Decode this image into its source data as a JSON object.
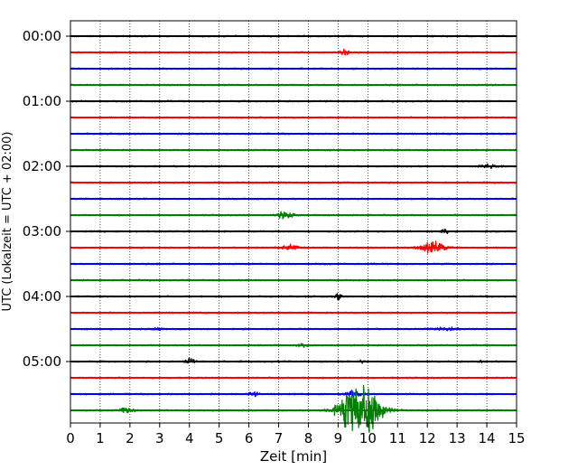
{
  "chart_data": {
    "type": "line",
    "title": "",
    "xlabel": "Zeit  [min]",
    "ylabel": "UTC (Lokalzeit = UTC + 02:00)",
    "xlim": [
      0,
      15
    ],
    "x_ticks": [
      0,
      1,
      2,
      3,
      4,
      5,
      6,
      7,
      8,
      9,
      10,
      11,
      12,
      13,
      14,
      15
    ],
    "y_tick_labels": [
      "00:00",
      "01:00",
      "02:00",
      "03:00",
      "04:00",
      "05:00"
    ],
    "row_start_times": [
      "00:00",
      "00:15",
      "00:30",
      "00:45",
      "01:00",
      "01:15",
      "01:30",
      "01:45",
      "02:00",
      "02:15",
      "02:30",
      "02:45",
      "03:00",
      "03:15",
      "03:30",
      "03:45",
      "04:00",
      "04:15",
      "04:30",
      "04:45",
      "05:00",
      "05:15",
      "05:30",
      "05:45"
    ],
    "row_colors": [
      "#000000",
      "#ff0000",
      "#0000ff",
      "#008000"
    ],
    "grid_x": "dotted",
    "noise_level": 0.12,
    "events": [
      {
        "row": 1,
        "t": 9.2,
        "amp": 0.5,
        "dur": 0.2
      },
      {
        "row": 8,
        "t": 14.0,
        "amp": 0.25,
        "dur": 0.4
      },
      {
        "row": 11,
        "t": 7.2,
        "amp": 0.5,
        "dur": 0.4
      },
      {
        "row": 12,
        "t": 12.6,
        "amp": 0.4,
        "dur": 0.15
      },
      {
        "row": 13,
        "t": 7.4,
        "amp": 0.4,
        "dur": 0.4
      },
      {
        "row": 13,
        "t": 12.2,
        "amp": 0.9,
        "dur": 0.6
      },
      {
        "row": 16,
        "t": 9.0,
        "amp": 0.5,
        "dur": 0.15
      },
      {
        "row": 18,
        "t": 2.95,
        "amp": 0.3,
        "dur": 0.15
      },
      {
        "row": 18,
        "t": 12.6,
        "amp": 0.25,
        "dur": 0.6
      },
      {
        "row": 19,
        "t": 7.8,
        "amp": 0.4,
        "dur": 0.2
      },
      {
        "row": 20,
        "t": 4.05,
        "amp": 0.6,
        "dur": 0.2
      },
      {
        "row": 20,
        "t": 9.8,
        "amp": 0.25,
        "dur": 0.1
      },
      {
        "row": 20,
        "t": 13.8,
        "amp": 0.25,
        "dur": 0.1
      },
      {
        "row": 22,
        "t": 6.15,
        "amp": 0.45,
        "dur": 0.2
      },
      {
        "row": 22,
        "t": 9.5,
        "amp": 0.4,
        "dur": 0.4
      },
      {
        "row": 23,
        "t": 1.9,
        "amp": 0.5,
        "dur": 0.3
      },
      {
        "row": 23,
        "t": 9.75,
        "amp": 4.5,
        "dur": 0.9
      }
    ]
  }
}
